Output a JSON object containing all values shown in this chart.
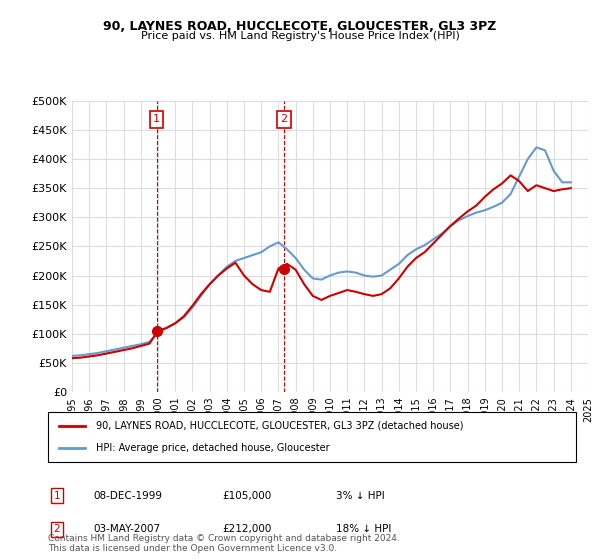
{
  "title": "90, LAYNES ROAD, HUCCLECOTE, GLOUCESTER, GL3 3PZ",
  "subtitle": "Price paid vs. HM Land Registry's House Price Index (HPI)",
  "footnote": "Contains HM Land Registry data © Crown copyright and database right 2024.\nThis data is licensed under the Open Government Licence v3.0.",
  "legend_line1": "90, LAYNES ROAD, HUCCLECOTE, GLOUCESTER, GL3 3PZ (detached house)",
  "legend_line2": "HPI: Average price, detached house, Gloucester",
  "annotation1_label": "1",
  "annotation1_date": "08-DEC-1999",
  "annotation1_price": "£105,000",
  "annotation1_hpi": "3% ↓ HPI",
  "annotation2_label": "2",
  "annotation2_date": "03-MAY-2007",
  "annotation2_price": "£212,000",
  "annotation2_hpi": "18% ↓ HPI",
  "hpi_color": "#6699cc",
  "price_color": "#cc0000",
  "annotation_color": "#cc0000",
  "grid_color": "#dddddd",
  "background_color": "#ffffff",
  "ylim": [
    0,
    500000
  ],
  "yticks": [
    0,
    50000,
    100000,
    150000,
    200000,
    250000,
    300000,
    350000,
    400000,
    450000,
    500000
  ],
  "hpi_x": [
    1995.0,
    1995.5,
    1996.0,
    1996.5,
    1997.0,
    1997.5,
    1998.0,
    1998.5,
    1999.0,
    1999.5,
    2000.0,
    2000.5,
    2001.0,
    2001.5,
    2002.0,
    2002.5,
    2003.0,
    2003.5,
    2004.0,
    2004.5,
    2005.0,
    2005.5,
    2006.0,
    2006.5,
    2007.0,
    2007.5,
    2008.0,
    2008.5,
    2009.0,
    2009.5,
    2010.0,
    2010.5,
    2011.0,
    2011.5,
    2012.0,
    2012.5,
    2013.0,
    2013.5,
    2014.0,
    2014.5,
    2015.0,
    2015.5,
    2016.0,
    2016.5,
    2017.0,
    2017.5,
    2018.0,
    2018.5,
    2019.0,
    2019.5,
    2020.0,
    2020.5,
    2021.0,
    2021.5,
    2022.0,
    2022.5,
    2023.0,
    2023.5,
    2024.0
  ],
  "hpi_y": [
    62000,
    63000,
    65000,
    67000,
    70000,
    73000,
    76000,
    79000,
    82000,
    86000,
    102000,
    110000,
    118000,
    128000,
    145000,
    165000,
    185000,
    200000,
    215000,
    225000,
    230000,
    235000,
    240000,
    250000,
    257000,
    245000,
    230000,
    210000,
    195000,
    193000,
    200000,
    205000,
    207000,
    205000,
    200000,
    198000,
    200000,
    210000,
    220000,
    235000,
    245000,
    252000,
    262000,
    272000,
    285000,
    295000,
    302000,
    308000,
    312000,
    318000,
    325000,
    340000,
    370000,
    400000,
    420000,
    415000,
    380000,
    360000,
    360000
  ],
  "price_x": [
    1995.0,
    1995.5,
    1996.0,
    1996.5,
    1997.0,
    1997.5,
    1998.0,
    1998.5,
    1999.0,
    1999.5,
    2000.0,
    2000.5,
    2001.0,
    2001.5,
    2002.0,
    2002.5,
    2003.0,
    2003.5,
    2004.0,
    2004.5,
    2005.0,
    2005.5,
    2006.0,
    2006.5,
    2007.0,
    2007.5,
    2008.0,
    2008.5,
    2009.0,
    2009.5,
    2010.0,
    2010.5,
    2011.0,
    2011.5,
    2012.0,
    2012.5,
    2013.0,
    2013.5,
    2014.0,
    2014.5,
    2015.0,
    2015.5,
    2016.0,
    2016.5,
    2017.0,
    2017.5,
    2018.0,
    2018.5,
    2019.0,
    2019.5,
    2020.0,
    2020.5,
    2021.0,
    2021.5,
    2022.0,
    2022.5,
    2023.0,
    2023.5,
    2024.0
  ],
  "price_y": [
    58000,
    59000,
    61000,
    63000,
    66000,
    69000,
    72000,
    75000,
    79000,
    83000,
    105000,
    110000,
    118000,
    130000,
    148000,
    168000,
    185000,
    200000,
    212000,
    222000,
    200000,
    185000,
    175000,
    172000,
    212000,
    220000,
    210000,
    185000,
    165000,
    158000,
    165000,
    170000,
    175000,
    172000,
    168000,
    165000,
    168000,
    178000,
    195000,
    215000,
    230000,
    240000,
    255000,
    270000,
    285000,
    298000,
    310000,
    320000,
    335000,
    348000,
    358000,
    372000,
    362000,
    345000,
    355000,
    350000,
    345000,
    348000,
    350000
  ],
  "sale1_x": 1999.92,
  "sale1_y": 105000,
  "sale2_x": 2007.33,
  "sale2_y": 212000,
  "xtick_years": [
    1995,
    1996,
    1997,
    1998,
    1999,
    2000,
    2001,
    2002,
    2003,
    2004,
    2005,
    2006,
    2007,
    2008,
    2009,
    2010,
    2011,
    2012,
    2013,
    2014,
    2015,
    2016,
    2017,
    2018,
    2019,
    2020,
    2021,
    2022,
    2023,
    2024,
    2025
  ],
  "vline1_x": 1999.92,
  "vline2_x": 2007.33
}
